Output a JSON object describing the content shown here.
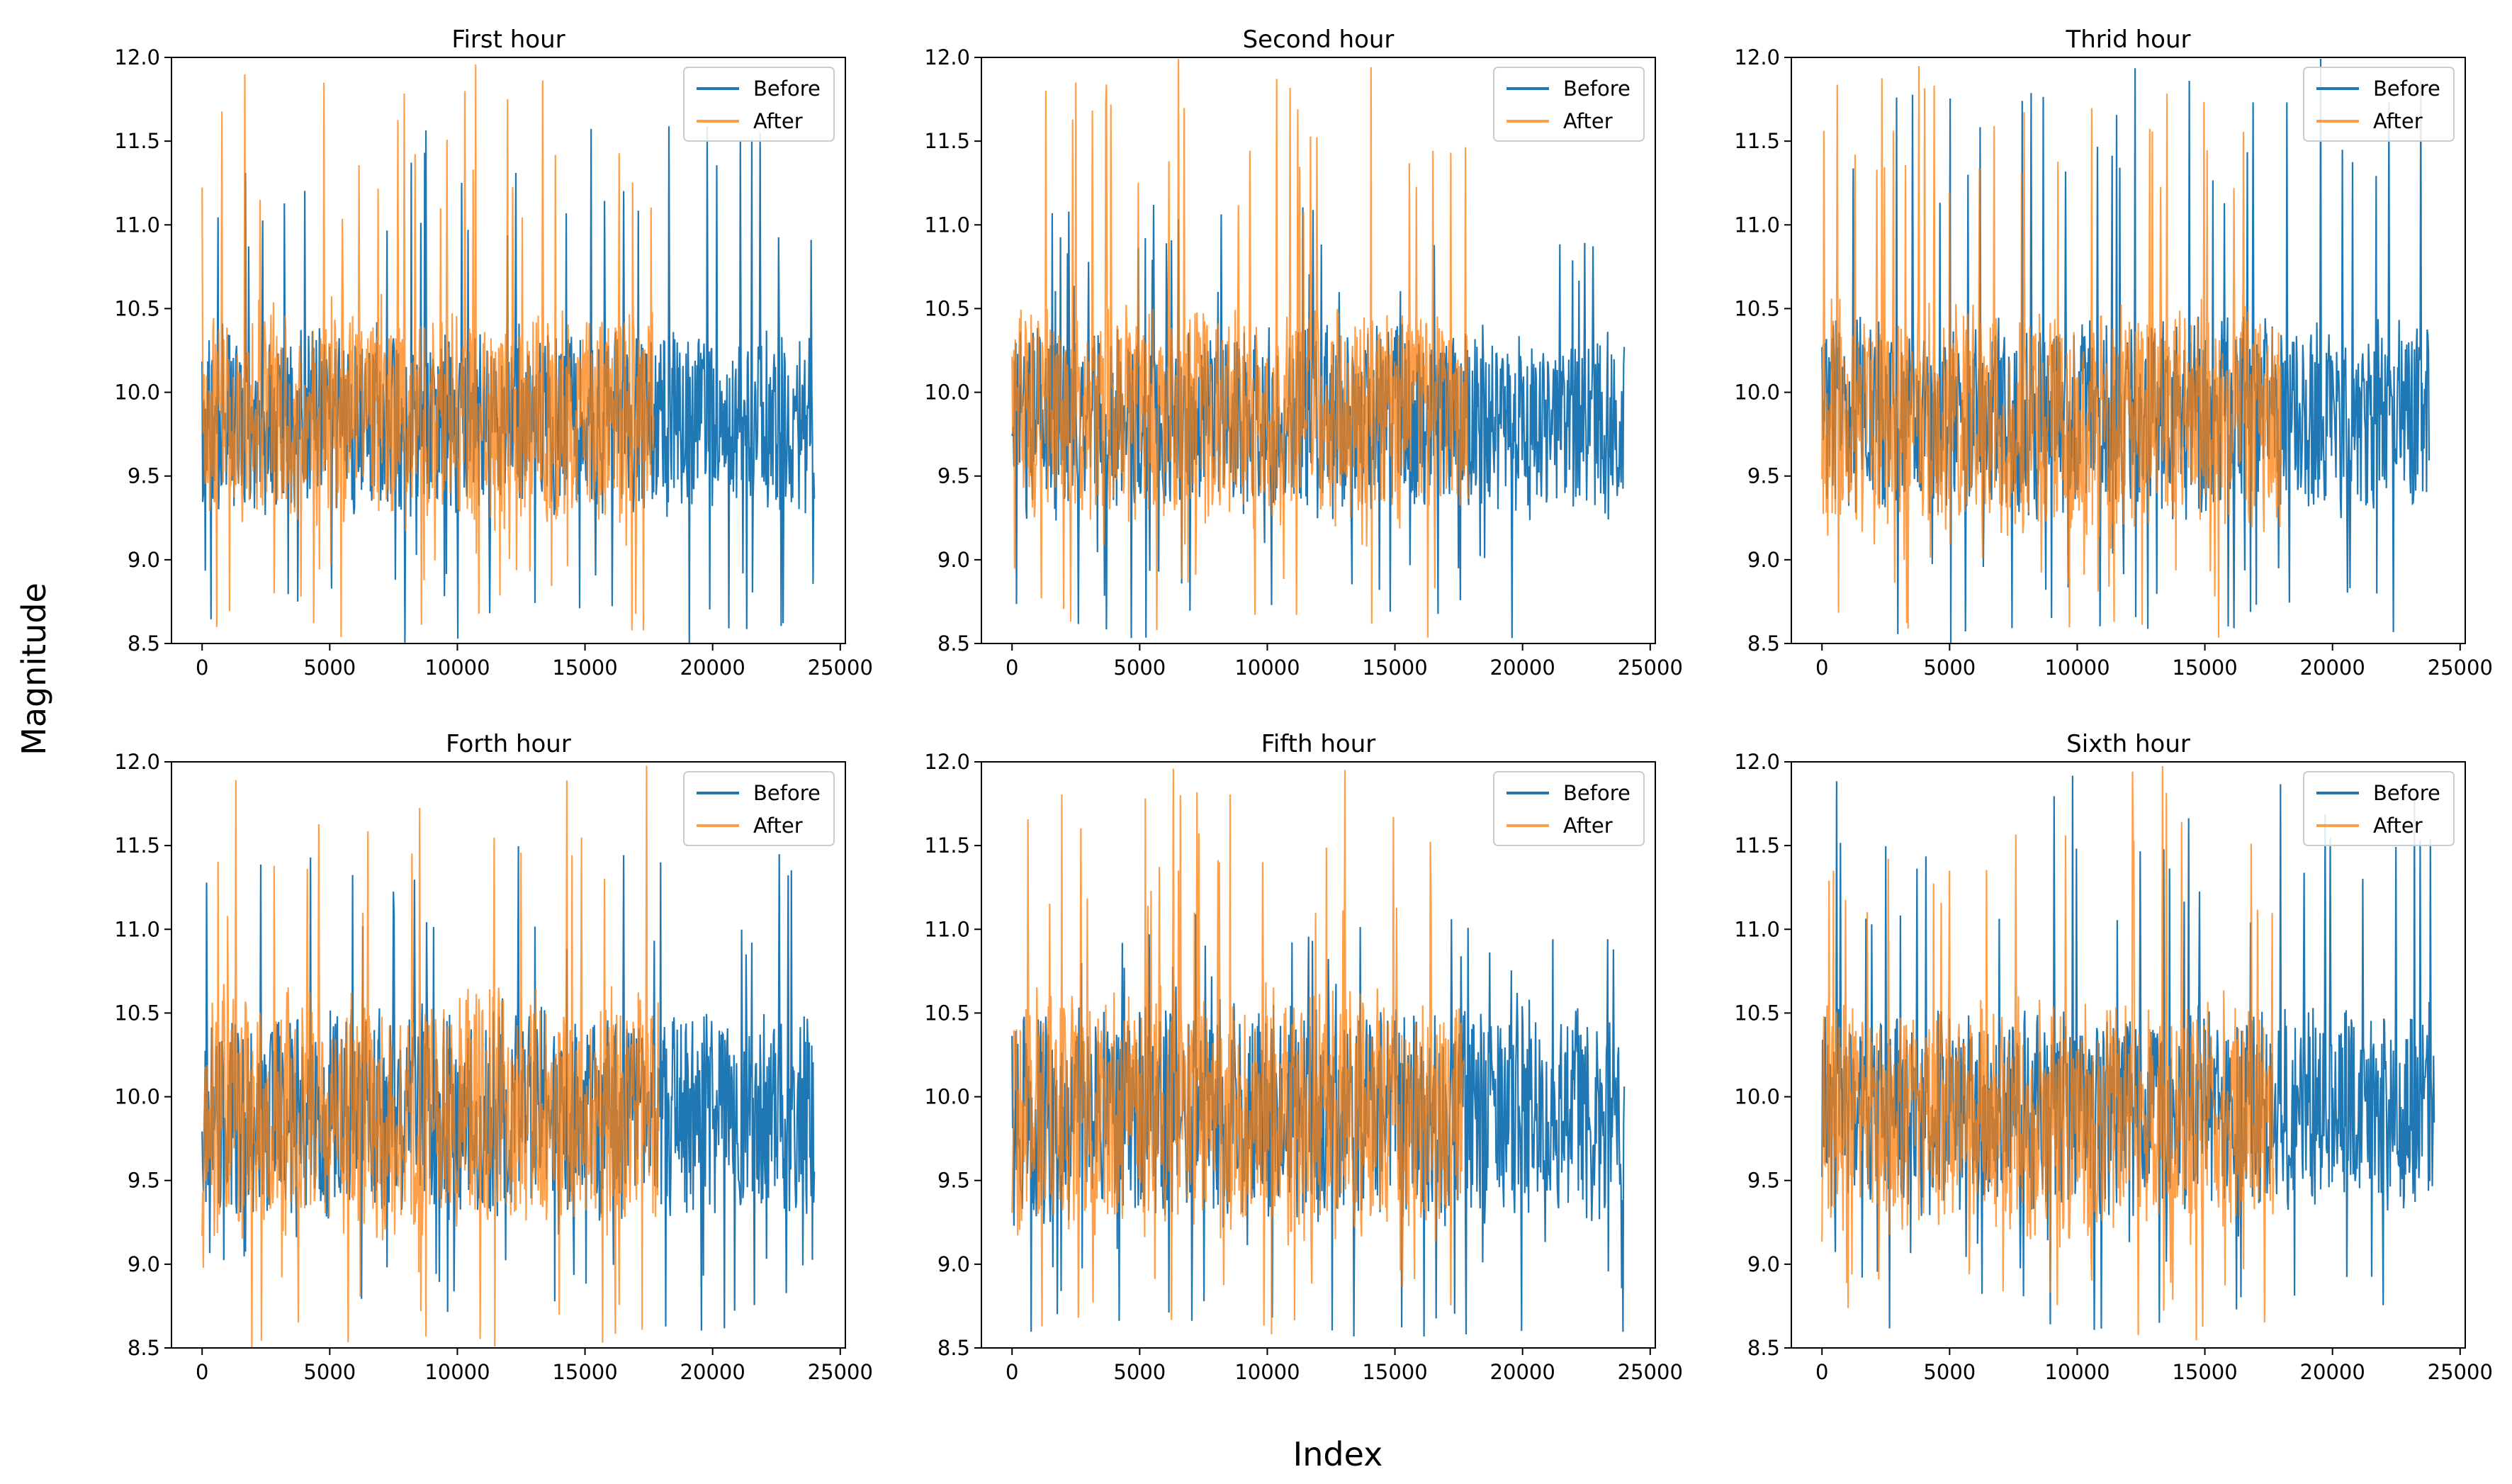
{
  "figure": {
    "xlabel": "Index",
    "ylabel": "Magnitude",
    "colors": {
      "before": "#1f77b4",
      "after": "#ff7f0e",
      "after_alpha": 0.75
    }
  },
  "chart_data": [
    {
      "type": "line",
      "title": "First hour",
      "xlim": [
        -1200,
        25200
      ],
      "ylim": [
        8.5,
        12.0
      ],
      "xticks": [
        0,
        5000,
        10000,
        15000,
        20000,
        25000
      ],
      "xtick_labels": [
        "0",
        "5000",
        "10000",
        "15000",
        "20000",
        "25000"
      ],
      "yticks": [
        8.5,
        9.0,
        9.5,
        10.0,
        10.5,
        11.0,
        11.5,
        12.0
      ],
      "ytick_labels": [
        "8.5",
        "9.0",
        "9.5",
        "10.0",
        "10.5",
        "11.0",
        "11.5",
        "12.0"
      ],
      "legend": {
        "position": "top-right",
        "entries": [
          "Before",
          "After"
        ]
      },
      "series": [
        {
          "name": "Before",
          "x_range": [
            0,
            24000
          ],
          "mean": 9.85,
          "core_low": 9.3,
          "core_high": 10.35,
          "spike_max": 11.65,
          "dip_min": 8.45
        },
        {
          "name": "After",
          "x_range": [
            0,
            17700
          ],
          "mean": 9.85,
          "core_low": 9.25,
          "core_high": 10.5,
          "spike_max": 12.0,
          "dip_min": 8.5
        }
      ]
    },
    {
      "type": "line",
      "title": "Second hour",
      "xlim": [
        -1200,
        25200
      ],
      "ylim": [
        8.5,
        12.0
      ],
      "xticks": [
        0,
        5000,
        10000,
        15000,
        20000,
        25000
      ],
      "xtick_labels": [
        "0",
        "5000",
        "10000",
        "15000",
        "20000",
        "25000"
      ],
      "yticks": [
        8.5,
        9.0,
        9.5,
        10.0,
        10.5,
        11.0,
        11.5,
        12.0
      ],
      "ytick_labels": [
        "8.5",
        "9.0",
        "9.5",
        "10.0",
        "10.5",
        "11.0",
        "11.5",
        "12.0"
      ],
      "legend": {
        "position": "top-right",
        "entries": [
          "Before",
          "After"
        ]
      },
      "series": [
        {
          "name": "Before",
          "x_range": [
            0,
            24000
          ],
          "mean": 9.85,
          "core_low": 9.3,
          "core_high": 10.35,
          "spike_max": 11.15,
          "dip_min": 8.5
        },
        {
          "name": "After",
          "x_range": [
            0,
            17900
          ],
          "mean": 9.85,
          "core_low": 9.25,
          "core_high": 10.5,
          "spike_max": 12.0,
          "dip_min": 8.5
        }
      ]
    },
    {
      "type": "line",
      "title": "Thrid hour",
      "xlim": [
        -1200,
        25200
      ],
      "ylim": [
        8.5,
        12.0
      ],
      "xticks": [
        0,
        5000,
        10000,
        15000,
        20000,
        25000
      ],
      "xtick_labels": [
        "0",
        "5000",
        "10000",
        "15000",
        "20000",
        "25000"
      ],
      "legend": {
        "position": "top-right",
        "entries": [
          "Before",
          "After"
        ]
      },
      "yticks": [
        8.5,
        9.0,
        9.5,
        10.0,
        10.5,
        11.0,
        11.5,
        12.0
      ],
      "ytick_labels": [
        "8.5",
        "9.0",
        "9.5",
        "10.0",
        "10.5",
        "11.0",
        "11.5",
        "12.0"
      ],
      "series": [
        {
          "name": "Before",
          "x_range": [
            0,
            23800
          ],
          "mean": 9.85,
          "core_low": 9.3,
          "core_high": 10.4,
          "spike_max": 12.0,
          "dip_min": 8.5
        },
        {
          "name": "After",
          "x_range": [
            0,
            18000
          ],
          "mean": 9.85,
          "core_low": 9.2,
          "core_high": 10.5,
          "spike_max": 12.0,
          "dip_min": 8.5
        }
      ]
    },
    {
      "type": "line",
      "title": "Forth hour",
      "xlim": [
        -1200,
        25200
      ],
      "ylim": [
        8.5,
        12.0
      ],
      "xticks": [
        0,
        5000,
        10000,
        15000,
        20000,
        25000
      ],
      "xtick_labels": [
        "0",
        "5000",
        "10000",
        "15000",
        "20000",
        "25000"
      ],
      "yticks": [
        8.5,
        9.0,
        9.5,
        10.0,
        10.5,
        11.0,
        11.5,
        12.0
      ],
      "ytick_labels": [
        "8.5",
        "9.0",
        "9.5",
        "10.0",
        "10.5",
        "11.0",
        "11.5",
        "12.0"
      ],
      "legend": {
        "position": "top-right",
        "entries": [
          "Before",
          "After"
        ]
      },
      "series": [
        {
          "name": "Before",
          "x_range": [
            0,
            24000
          ],
          "mean": 9.9,
          "core_low": 9.3,
          "core_high": 10.5,
          "spike_max": 11.55,
          "dip_min": 8.6
        },
        {
          "name": "After",
          "x_range": [
            0,
            17900
          ],
          "mean": 9.85,
          "core_low": 9.2,
          "core_high": 10.6,
          "spike_max": 12.0,
          "dip_min": 8.5
        }
      ]
    },
    {
      "type": "line",
      "title": "Fifth hour",
      "xlim": [
        -1200,
        25200
      ],
      "ylim": [
        8.5,
        12.0
      ],
      "xticks": [
        0,
        5000,
        10000,
        15000,
        20000,
        25000
      ],
      "xtick_labels": [
        "0",
        "5000",
        "10000",
        "15000",
        "20000",
        "25000"
      ],
      "yticks": [
        8.5,
        9.0,
        9.5,
        10.0,
        10.5,
        11.0,
        11.5,
        12.0
      ],
      "ytick_labels": [
        "8.5",
        "9.0",
        "9.5",
        "10.0",
        "10.5",
        "11.0",
        "11.5",
        "12.0"
      ],
      "legend": {
        "position": "top-right",
        "entries": [
          "Before",
          "After"
        ]
      },
      "series": [
        {
          "name": "Before",
          "x_range": [
            0,
            24000
          ],
          "mean": 9.85,
          "core_low": 9.3,
          "core_high": 10.5,
          "spike_max": 11.1,
          "dip_min": 8.55
        },
        {
          "name": "After",
          "x_range": [
            0,
            17700
          ],
          "mean": 9.85,
          "core_low": 9.2,
          "core_high": 10.6,
          "spike_max": 12.0,
          "dip_min": 8.5
        }
      ]
    },
    {
      "type": "line",
      "title": "Sixth hour",
      "xlim": [
        -1200,
        25200
      ],
      "ylim": [
        8.5,
        12.0
      ],
      "xticks": [
        0,
        5000,
        10000,
        15000,
        20000,
        25000
      ],
      "xtick_labels": [
        "0",
        "5000",
        "10000",
        "15000",
        "20000",
        "25000"
      ],
      "yticks": [
        8.5,
        9.0,
        9.5,
        10.0,
        10.5,
        11.0,
        11.5,
        12.0
      ],
      "ytick_labels": [
        "8.5",
        "9.0",
        "9.5",
        "10.0",
        "10.5",
        "11.0",
        "11.5",
        "12.0"
      ],
      "legend": {
        "position": "top-right",
        "entries": [
          "Before",
          "After"
        ]
      },
      "series": [
        {
          "name": "Before",
          "x_range": [
            0,
            24000
          ],
          "mean": 9.9,
          "core_low": 9.35,
          "core_high": 10.5,
          "spike_max": 11.95,
          "dip_min": 8.6
        },
        {
          "name": "After",
          "x_range": [
            0,
            17700
          ],
          "mean": 9.85,
          "core_low": 9.2,
          "core_high": 10.55,
          "spike_max": 12.0,
          "dip_min": 8.5
        }
      ]
    }
  ]
}
